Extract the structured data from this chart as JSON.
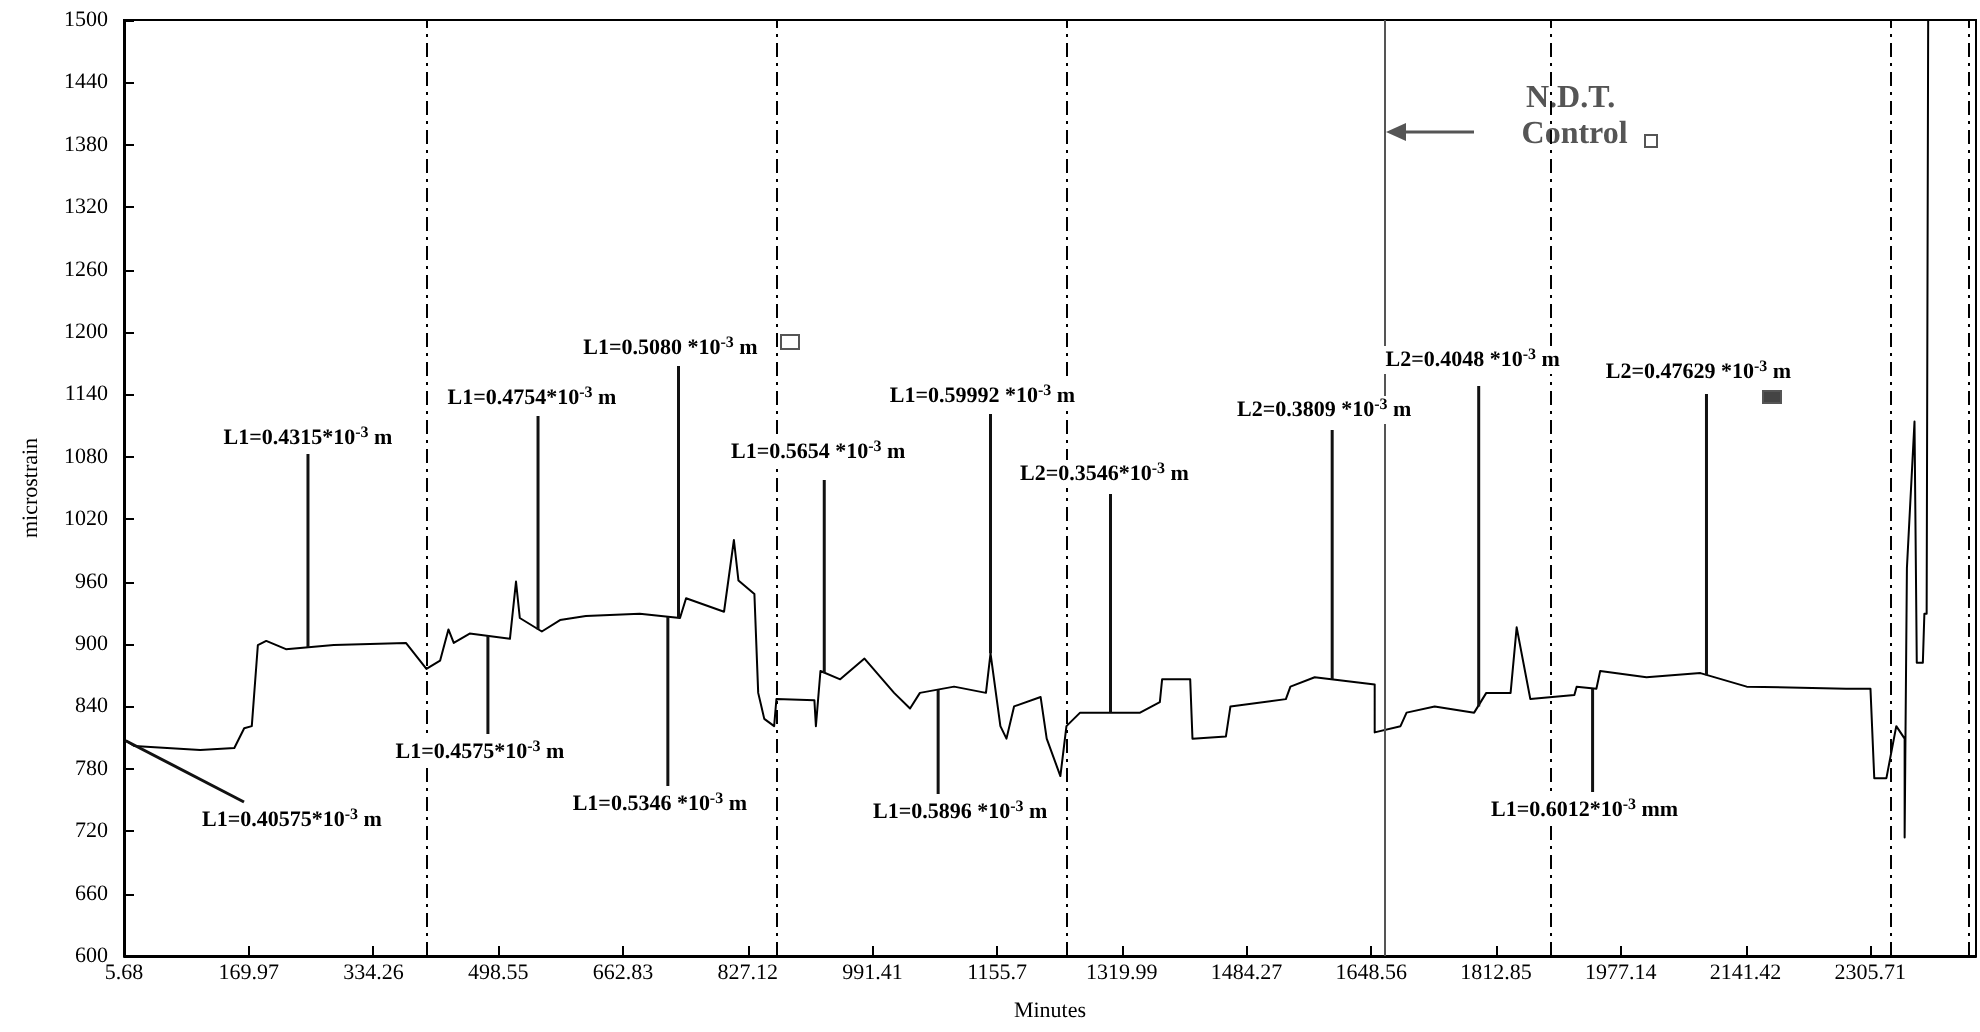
{
  "chart_data": {
    "type": "line",
    "xlabel": "Minutes",
    "ylabel": "microstrain",
    "xlim": [
      5.68,
      2445
    ],
    "xticks": [
      5.68,
      169.97,
      334.26,
      498.55,
      662.83,
      827.12,
      991.41,
      1155.7,
      1319.99,
      1484.27,
      1648.56,
      1812.85,
      1977.14,
      2141.42,
      2305.71
    ],
    "ylim": [
      600,
      1500
    ],
    "yticks": [
      600,
      660,
      720,
      780,
      840,
      900,
      960,
      1020,
      1080,
      1140,
      1200,
      1260,
      1320,
      1380,
      1440,
      1500
    ],
    "grid": false,
    "marker": "none",
    "line_style": "solid",
    "series": [
      {
        "color": "#000000",
        "x": [
          8,
          19,
          106,
          151,
          164,
          174,
          182,
          193,
          219,
          282,
          377,
          404,
          422,
          433,
          440,
          461,
          514,
          522,
          527,
          556,
          580,
          614,
          685,
          738,
          746,
          796,
          809,
          815,
          836,
          841,
          849,
          862,
          865,
          915,
          917,
          923,
          949,
          981,
          1020,
          1041,
          1054,
          1099,
          1141,
          1147,
          1160,
          1168,
          1178,
          1213,
          1221,
          1239,
          1247,
          1265,
          1344,
          1370,
          1373,
          1410,
          1413,
          1457,
          1463,
          1536,
          1542,
          1574,
          1653,
          1653,
          1687,
          1695,
          1732,
          1784,
          1800,
          1832,
          1840,
          1858,
          1916,
          1919,
          1945,
          1950,
          2011,
          2082,
          2143,
          2274,
          2306,
          2311,
          2327,
          2340,
          2351,
          2351,
          2354,
          2364,
          2367,
          2375,
          2377,
          2380,
          2382
        ],
        "values": [
          807,
          802,
          798,
          800,
          819,
          821,
          899,
          903,
          895,
          899,
          901,
          876,
          884,
          914,
          901,
          910,
          905,
          960,
          925,
          912,
          923,
          927,
          929,
          925,
          944,
          931,
          1000,
          961,
          948,
          853,
          828,
          821,
          847,
          846,
          821,
          874,
          866,
          886,
          853,
          838,
          853,
          859,
          853,
          891,
          821,
          809,
          840,
          849,
          809,
          773,
          821,
          834,
          834,
          844,
          866,
          866,
          809,
          811,
          840,
          847,
          859,
          868,
          861,
          815,
          821,
          834,
          840,
          834,
          853,
          853,
          916,
          847,
          851,
          859,
          857,
          874,
          868,
          872,
          859,
          857,
          857,
          771,
          771,
          821,
          809,
          714,
          973,
          1114,
          882,
          882,
          929,
          929,
          1500
        ]
      }
    ],
    "ref_lines": [
      {
        "axis": "x",
        "value": 404,
        "line_style": "dashed",
        "color": "#000000"
      },
      {
        "axis": "x",
        "value": 865,
        "line_style": "dashed",
        "color": "#000000"
      },
      {
        "axis": "x",
        "value": 1247,
        "line_style": "dashed",
        "color": "#000000"
      },
      {
        "axis": "x",
        "value": 1666,
        "line_style": "solid",
        "color": "#555555",
        "label": "N.D.T. Control"
      },
      {
        "axis": "x",
        "value": 1884,
        "line_style": "dashed",
        "color": "#000000"
      },
      {
        "axis": "x",
        "value": 2332,
        "line_style": "dashed",
        "color": "#000000"
      },
      {
        "axis": "x",
        "value": 2435,
        "line_style": "dashed",
        "color": "#000000"
      }
    ],
    "annotations": [
      {
        "text": "L1=0.40575*10$^{-3}$ m",
        "x": 8,
        "y": 807
      },
      {
        "text": "L1=0.4315*10$^{-3}$ m",
        "x": 248,
        "y": 897
      },
      {
        "text": "L1=0.4575*10$^{-3}$ m",
        "x": 485,
        "y": 908
      },
      {
        "text": "L1=0.4754*10$^{-3}$ m",
        "x": 551,
        "y": 914
      },
      {
        "text": "L1=0.5080 *10$^{-3}$ m",
        "x": 736,
        "y": 925
      },
      {
        "text": "L1=0.5346 *10$^{-3}$ m",
        "x": 722,
        "y": 926
      },
      {
        "text": "L1=0.5654 *10$^{-3}$ m",
        "x": 928,
        "y": 872
      },
      {
        "text": "L1=0.5896 *10$^{-3}$ m",
        "x": 1078,
        "y": 856
      },
      {
        "text": "L1=0.59992 *10$^{-3}$ m",
        "x": 1147,
        "y": 891
      },
      {
        "text": "L2=0.3546*10$^{-3}$ m",
        "x": 1305,
        "y": 834
      },
      {
        "text": "L2=0.3809 *10$^{-3}$ m",
        "x": 1597,
        "y": 866
      },
      {
        "text": "L2=0.4048 *10$^{-3}$ m",
        "x": 1790,
        "y": 840
      },
      {
        "text": "L2=0.47629 *10$^{-3}$ m",
        "x": 2090,
        "y": 870
      },
      {
        "text": "L1=0.6012*10$^{-3}$ mm",
        "x": 1940,
        "y": 857
      }
    ]
  }
}
